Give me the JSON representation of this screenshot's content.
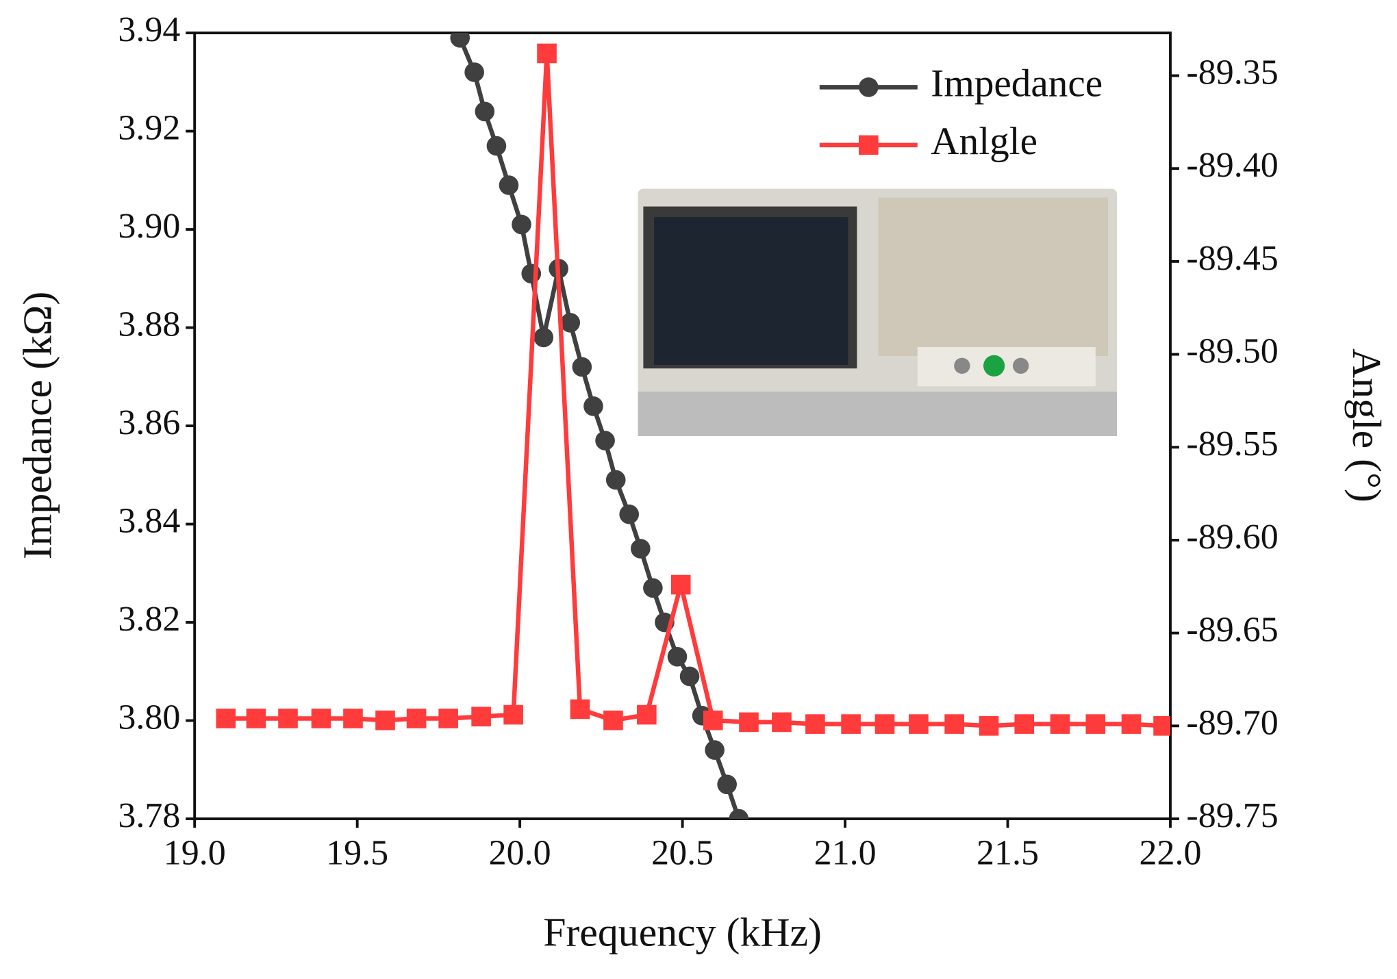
{
  "chart_data": {
    "type": "line",
    "xlabel": "Frequency (kHz)",
    "ylabel": "Impedance (kΩ)",
    "y2label": "Angle (°)",
    "xlim": [
      19.0,
      22.0
    ],
    "xticks": [
      {
        "value": 19.0,
        "label": "19.0"
      },
      19.5,
      {
        "value": 20.0,
        "label": "20.0"
      },
      20.5,
      {
        "value": 21.0,
        "label": "21.0"
      },
      21.5,
      {
        "value": 22.0,
        "label": "22.0"
      }
    ],
    "ylim": [
      3.78,
      3.94
    ],
    "yticks": [
      3.78,
      {
        "value": 3.8,
        "label": "3.80"
      },
      3.82,
      3.84,
      3.86,
      3.88,
      {
        "value": 3.9,
        "label": "3.90"
      },
      3.92,
      3.94
    ],
    "y2lim": [
      -89.75,
      -89.327
    ],
    "y2ticks": [
      -89.75,
      {
        "value": -89.7,
        "label": "-89.70"
      },
      -89.65,
      {
        "value": -89.6,
        "label": "-89.60"
      },
      -89.55,
      {
        "value": -89.5,
        "label": "-89.50"
      },
      -89.45,
      {
        "value": -89.4,
        "label": "-89.40"
      },
      -89.35
    ],
    "legend": "upper right",
    "series": [
      {
        "name": "Impedance",
        "color": "#404040",
        "marker": "circle",
        "x": [
          19.816,
          19.86,
          19.892,
          19.928,
          19.966,
          20.005,
          20.035,
          20.073,
          20.119,
          20.155,
          20.191,
          20.226,
          20.262,
          20.295,
          20.336,
          20.371,
          20.409,
          20.445,
          20.484,
          20.522,
          20.56,
          20.599,
          20.637,
          20.673
        ],
        "values": [
          3.939,
          3.932,
          3.924,
          3.917,
          3.909,
          3.901,
          3.891,
          3.878,
          3.892,
          3.881,
          3.872,
          3.864,
          3.857,
          3.849,
          3.842,
          3.835,
          3.827,
          3.82,
          3.813,
          3.809,
          3.801,
          3.794,
          3.787,
          3.78
        ]
      },
      {
        "name": "Anlgle",
        "color": "#ff3b3b",
        "marker": "square",
        "axis": "y2",
        "x": [
          19.096,
          19.189,
          19.287,
          19.389,
          19.487,
          19.586,
          19.682,
          19.78,
          19.881,
          19.98,
          20.083,
          20.185,
          20.287,
          20.39,
          20.495,
          20.594,
          20.704,
          20.805,
          20.908,
          21.018,
          21.122,
          21.226,
          21.336,
          21.442,
          21.551,
          21.661,
          21.77,
          21.88,
          21.978
        ],
        "values": [
          -89.696,
          -89.696,
          -89.696,
          -89.696,
          -89.696,
          -89.697,
          -89.696,
          -89.696,
          -89.695,
          -89.694,
          -89.338,
          -89.691,
          -89.697,
          -89.694,
          -89.624,
          -89.697,
          -89.698,
          -89.698,
          -89.699,
          -89.699,
          -89.699,
          -89.699,
          -89.699,
          -89.7,
          -89.699,
          -89.699,
          -89.699,
          -89.699,
          -89.7
        ]
      }
    ]
  }
}
